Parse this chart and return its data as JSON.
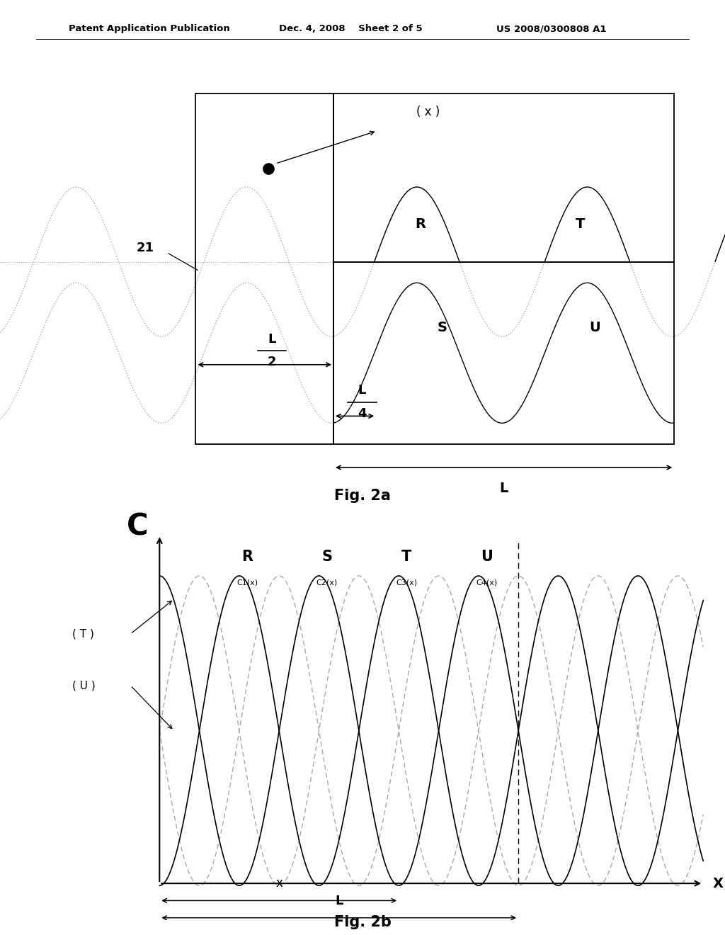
{
  "header_left": "Patent Application Publication",
  "header_mid": "Dec. 4, 2008    Sheet 2 of 5",
  "header_right": "US 2008/0300808 A1",
  "fig2a_label": "Fig. 2a",
  "fig2b_label": "Fig. 2b",
  "label_21": "21",
  "label_x_annot": "( x )",
  "label_R_top": "R",
  "label_T_top": "T",
  "label_S_bot": "S",
  "label_U_bot": "U",
  "label_L_bot": "L",
  "label_C": "C",
  "label_R_bot": "R",
  "label_S_b": "S",
  "label_T_b": "T",
  "label_U_b": "U",
  "label_T_curve": "( T )",
  "label_U_curve": "( U )",
  "label_x_b": "x",
  "label_L_b": "L",
  "label_X_axis": "X",
  "label_C1x": "C1(x)",
  "label_C2x": "C2(x)",
  "label_C3x": "C3(x)",
  "label_C4x": "C4(x)",
  "bg_color": "#ffffff",
  "line_color": "#000000",
  "dashed_color": "#aaaaaa"
}
